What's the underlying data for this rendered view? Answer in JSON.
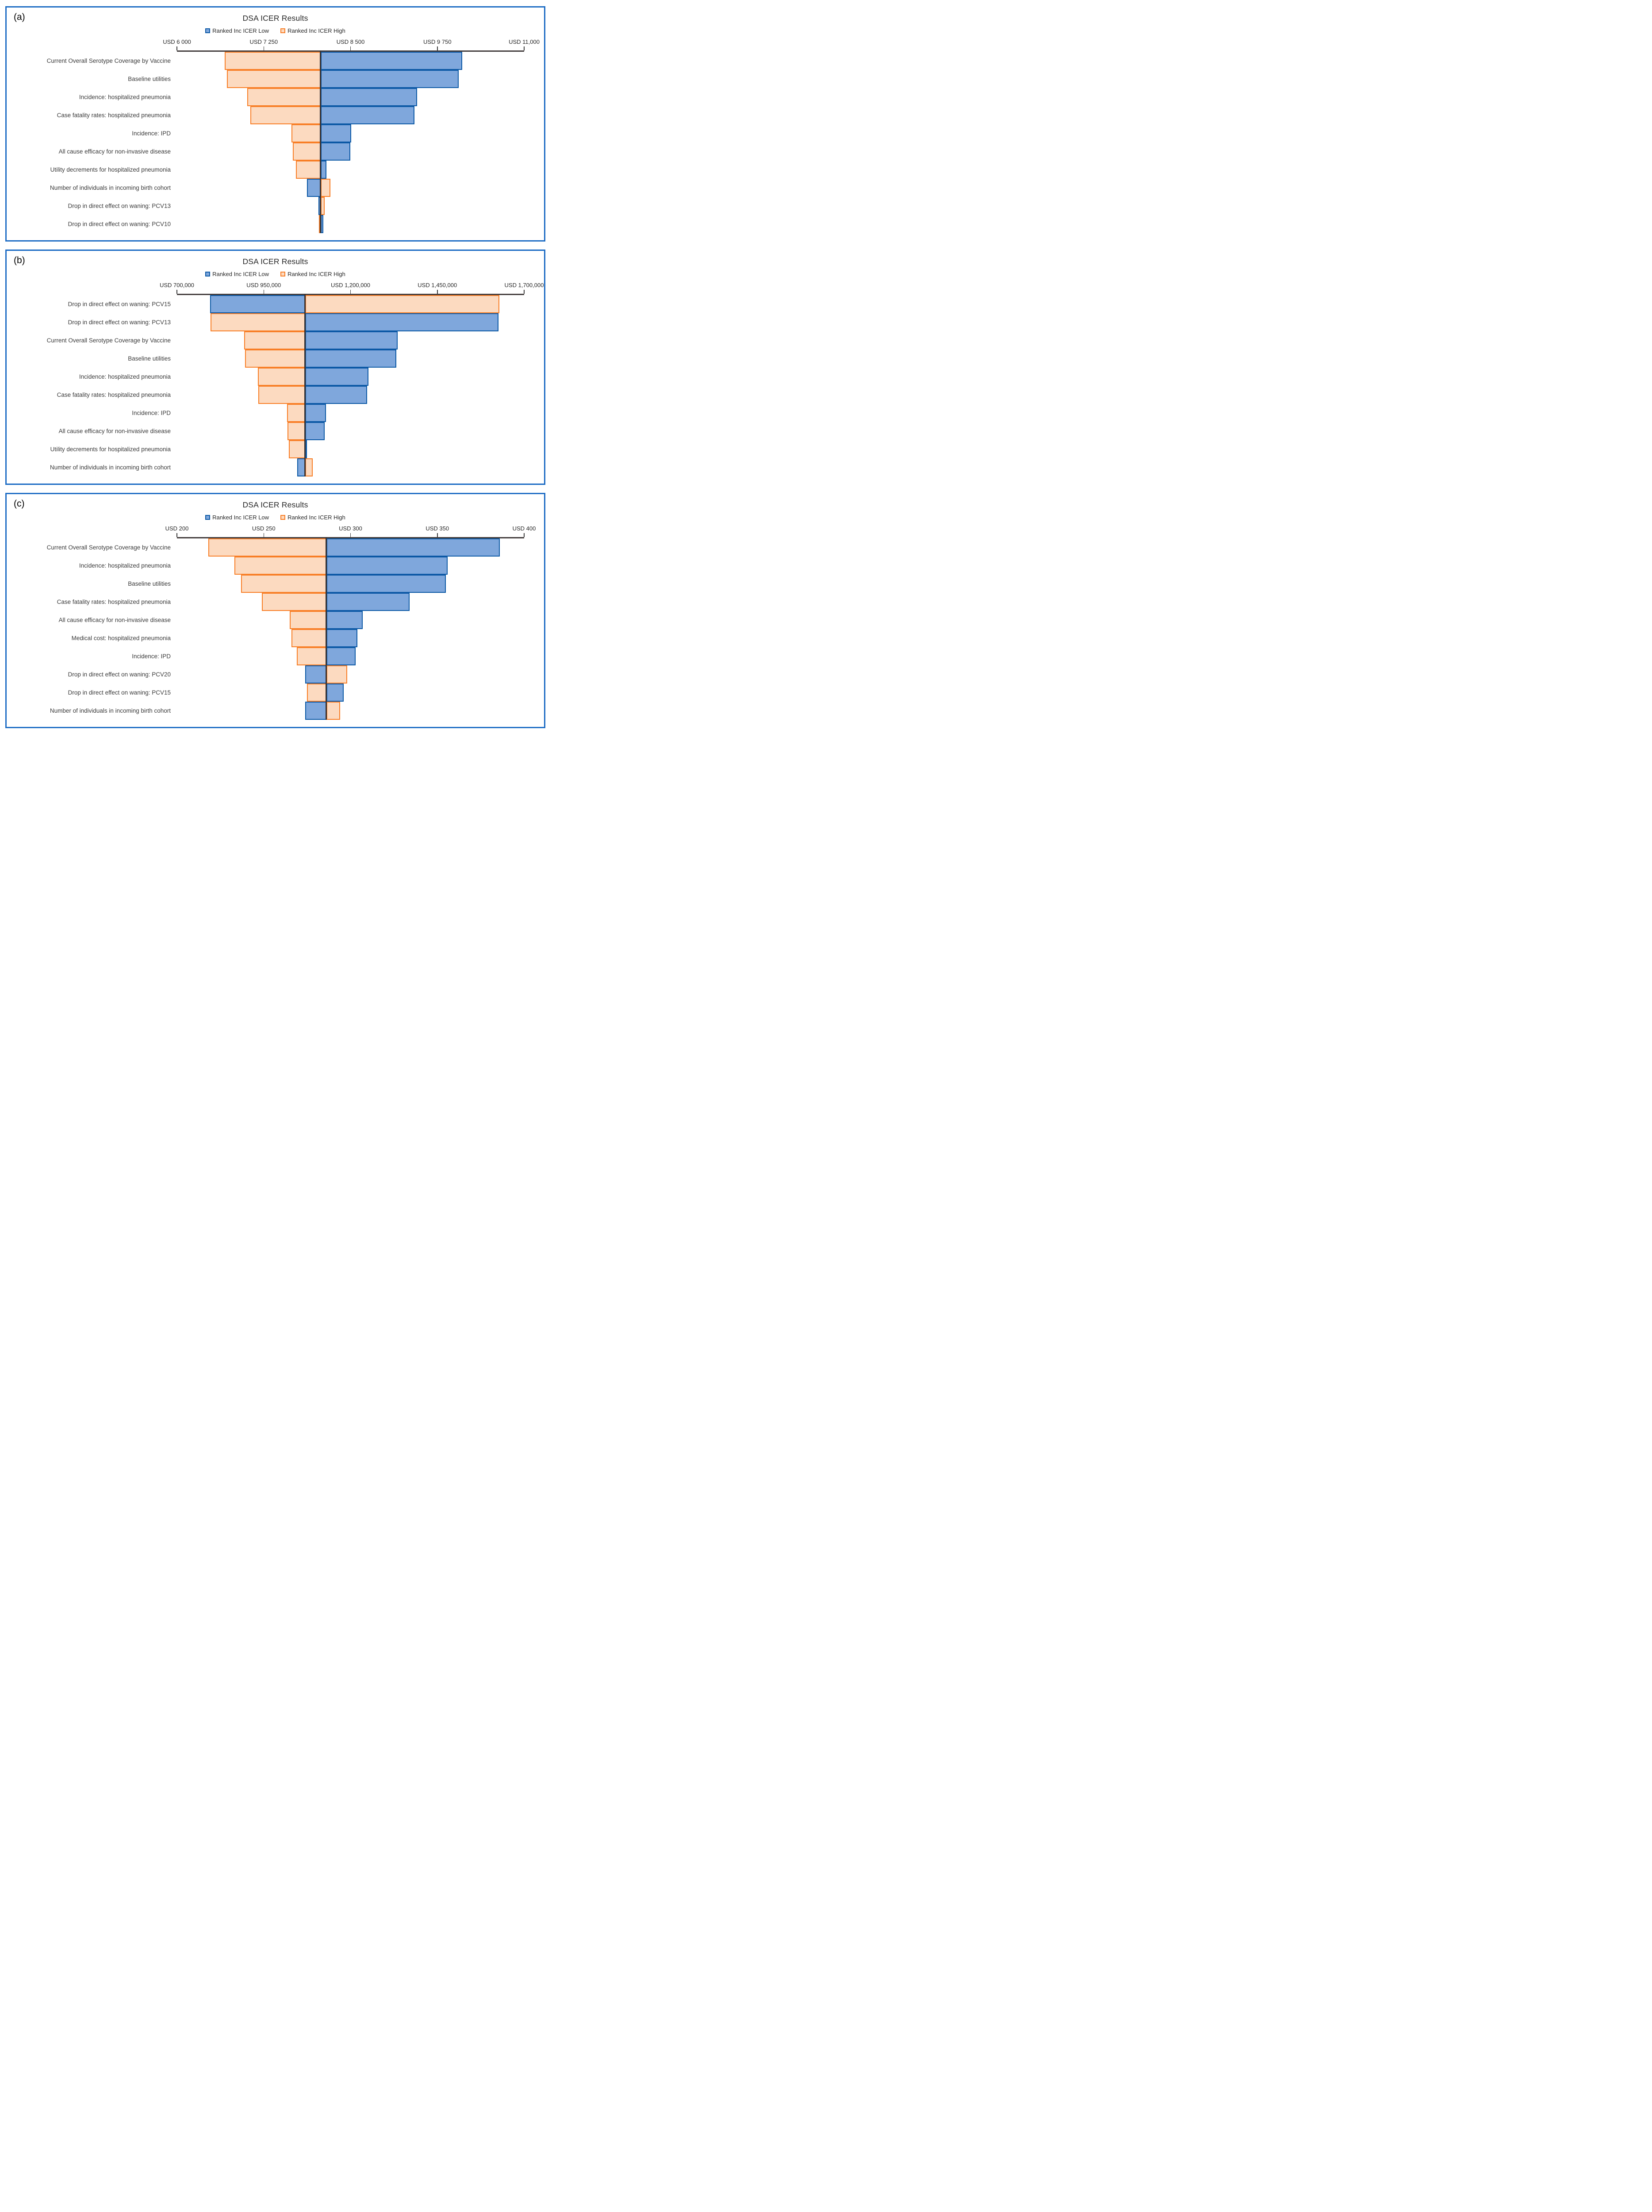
{
  "colors": {
    "low_fill": "#7FA7DC",
    "low_border": "#0B58A5",
    "high_fill": "#FCDAC0",
    "high_border": "#F87E26",
    "baseline_line": "#3A3434",
    "axis_line": "#433D3D",
    "panel_border": "#1D6CC4",
    "text": "#3A3A3A"
  },
  "chart_data": [
    {
      "type": "bar",
      "variant": "tornado",
      "panel_label": "(a)",
      "title": "DSA ICER Results",
      "legend": [
        {
          "name": "Ranked Inc ICER Low",
          "series": "low"
        },
        {
          "name": "Ranked Inc ICER High",
          "series": "high"
        }
      ],
      "x_axis": {
        "min": 6000,
        "max": 11000,
        "tick_values": [
          6000,
          7250,
          8500,
          9750,
          11000
        ],
        "tick_labels": [
          "USD 6 000",
          "USD 7 250",
          "USD 8 500",
          "USD 9 750",
          "USD 11,000"
        ]
      },
      "baseline_value": 8070,
      "categories": [
        "Current Overall Serotype Coverage by Vaccine",
        "Baseline utilities",
        "Incidence: hospitalized pneumonia",
        "Case fatality rates: hospitalized pneumonia",
        "Incidence: IPD",
        "All cause efficacy for non-invasive disease",
        "Utility decrements for hospitalized pneumonia",
        "Number of individuals in incoming birth cohort",
        "Drop in direct effect on waning: PCV13",
        "Drop in direct effect on waning: PCV10"
      ],
      "series": [
        {
          "name": "Ranked Inc ICER Low",
          "values": [
            10110,
            10060,
            9460,
            9420,
            8510,
            8500,
            8150,
            7870,
            8040,
            8110
          ]
        },
        {
          "name": "Ranked Inc ICER High",
          "values": [
            6690,
            6720,
            7010,
            7060,
            7650,
            7670,
            7715,
            8210,
            8130,
            8045
          ]
        }
      ]
    },
    {
      "type": "bar",
      "variant": "tornado",
      "panel_label": "(b)",
      "title": "DSA ICER Results",
      "legend": [
        {
          "name": "Ranked Inc ICER Low",
          "series": "low"
        },
        {
          "name": "Ranked Inc ICER High",
          "series": "high"
        }
      ],
      "x_axis": {
        "min": 700000,
        "max": 1700000,
        "tick_values": [
          700000,
          950000,
          1200000,
          1450000,
          1700000
        ],
        "tick_labels": [
          "USD 700,000",
          "USD 950,000",
          "USD 1,200,000",
          "USD 1,450,000",
          "USD 1,700,000"
        ]
      },
      "baseline_value": 1069000,
      "categories": [
        "Drop in direct effect on waning: PCV15",
        "Drop in direct effect on waning: PCV13",
        "Current Overall Serotype Coverage by Vaccine",
        "Baseline utilities",
        "Incidence: hospitalized pneumonia",
        "Case fatality rates: hospitalized pneumonia",
        "Incidence: IPD",
        "All cause efficacy for non-invasive disease",
        "Utility decrements for hospitalized pneumonia",
        "Number of individuals in incoming birth cohort"
      ],
      "series": [
        {
          "name": "Ranked Inc ICER Low",
          "values": [
            796000,
            1626000,
            1336000,
            1332000,
            1252000,
            1248000,
            1129000,
            1126000,
            1075000,
            1047000
          ]
        },
        {
          "name": "Ranked Inc ICER High",
          "values": [
            1629000,
            797000,
            893000,
            896000,
            933000,
            935000,
            1017000,
            1019000,
            1022000,
            1091000
          ]
        }
      ]
    },
    {
      "type": "bar",
      "variant": "tornado",
      "panel_label": "(c)",
      "title": "DSA ICER Results",
      "legend": [
        {
          "name": "Ranked Inc ICER Low",
          "series": "low"
        },
        {
          "name": "Ranked Inc ICER High",
          "series": "high"
        }
      ],
      "x_axis": {
        "min": 200,
        "max": 400,
        "tick_values": [
          200,
          250,
          300,
          350,
          400
        ],
        "tick_labels": [
          "USD 200",
          "USD 250",
          "USD 300",
          "USD 350",
          "USD 400"
        ]
      },
      "baseline_value": 286,
      "categories": [
        "Current Overall Serotype Coverage by Vaccine",
        "Incidence: hospitalized pneumonia",
        "Baseline utilities",
        "Case fatality rates: hospitalized pneumonia",
        "All cause efficacy for non-invasive disease",
        "Medical cost: hospitalized pneumonia",
        "Incidence: IPD",
        "Drop in direct effect on waning: PCV20",
        "Drop in direct effect on waning: PCV15",
        "Number of individuals in incoming birth cohort"
      ],
      "series": [
        {
          "name": "Ranked Inc ICER Low",
          "values": [
            386,
            356,
            355,
            334,
            307,
            304,
            303,
            274,
            296,
            274
          ]
        },
        {
          "name": "Ranked Inc ICER High",
          "values": [
            218,
            233,
            237,
            249,
            265,
            266,
            269,
            298,
            275,
            294
          ]
        }
      ]
    }
  ]
}
